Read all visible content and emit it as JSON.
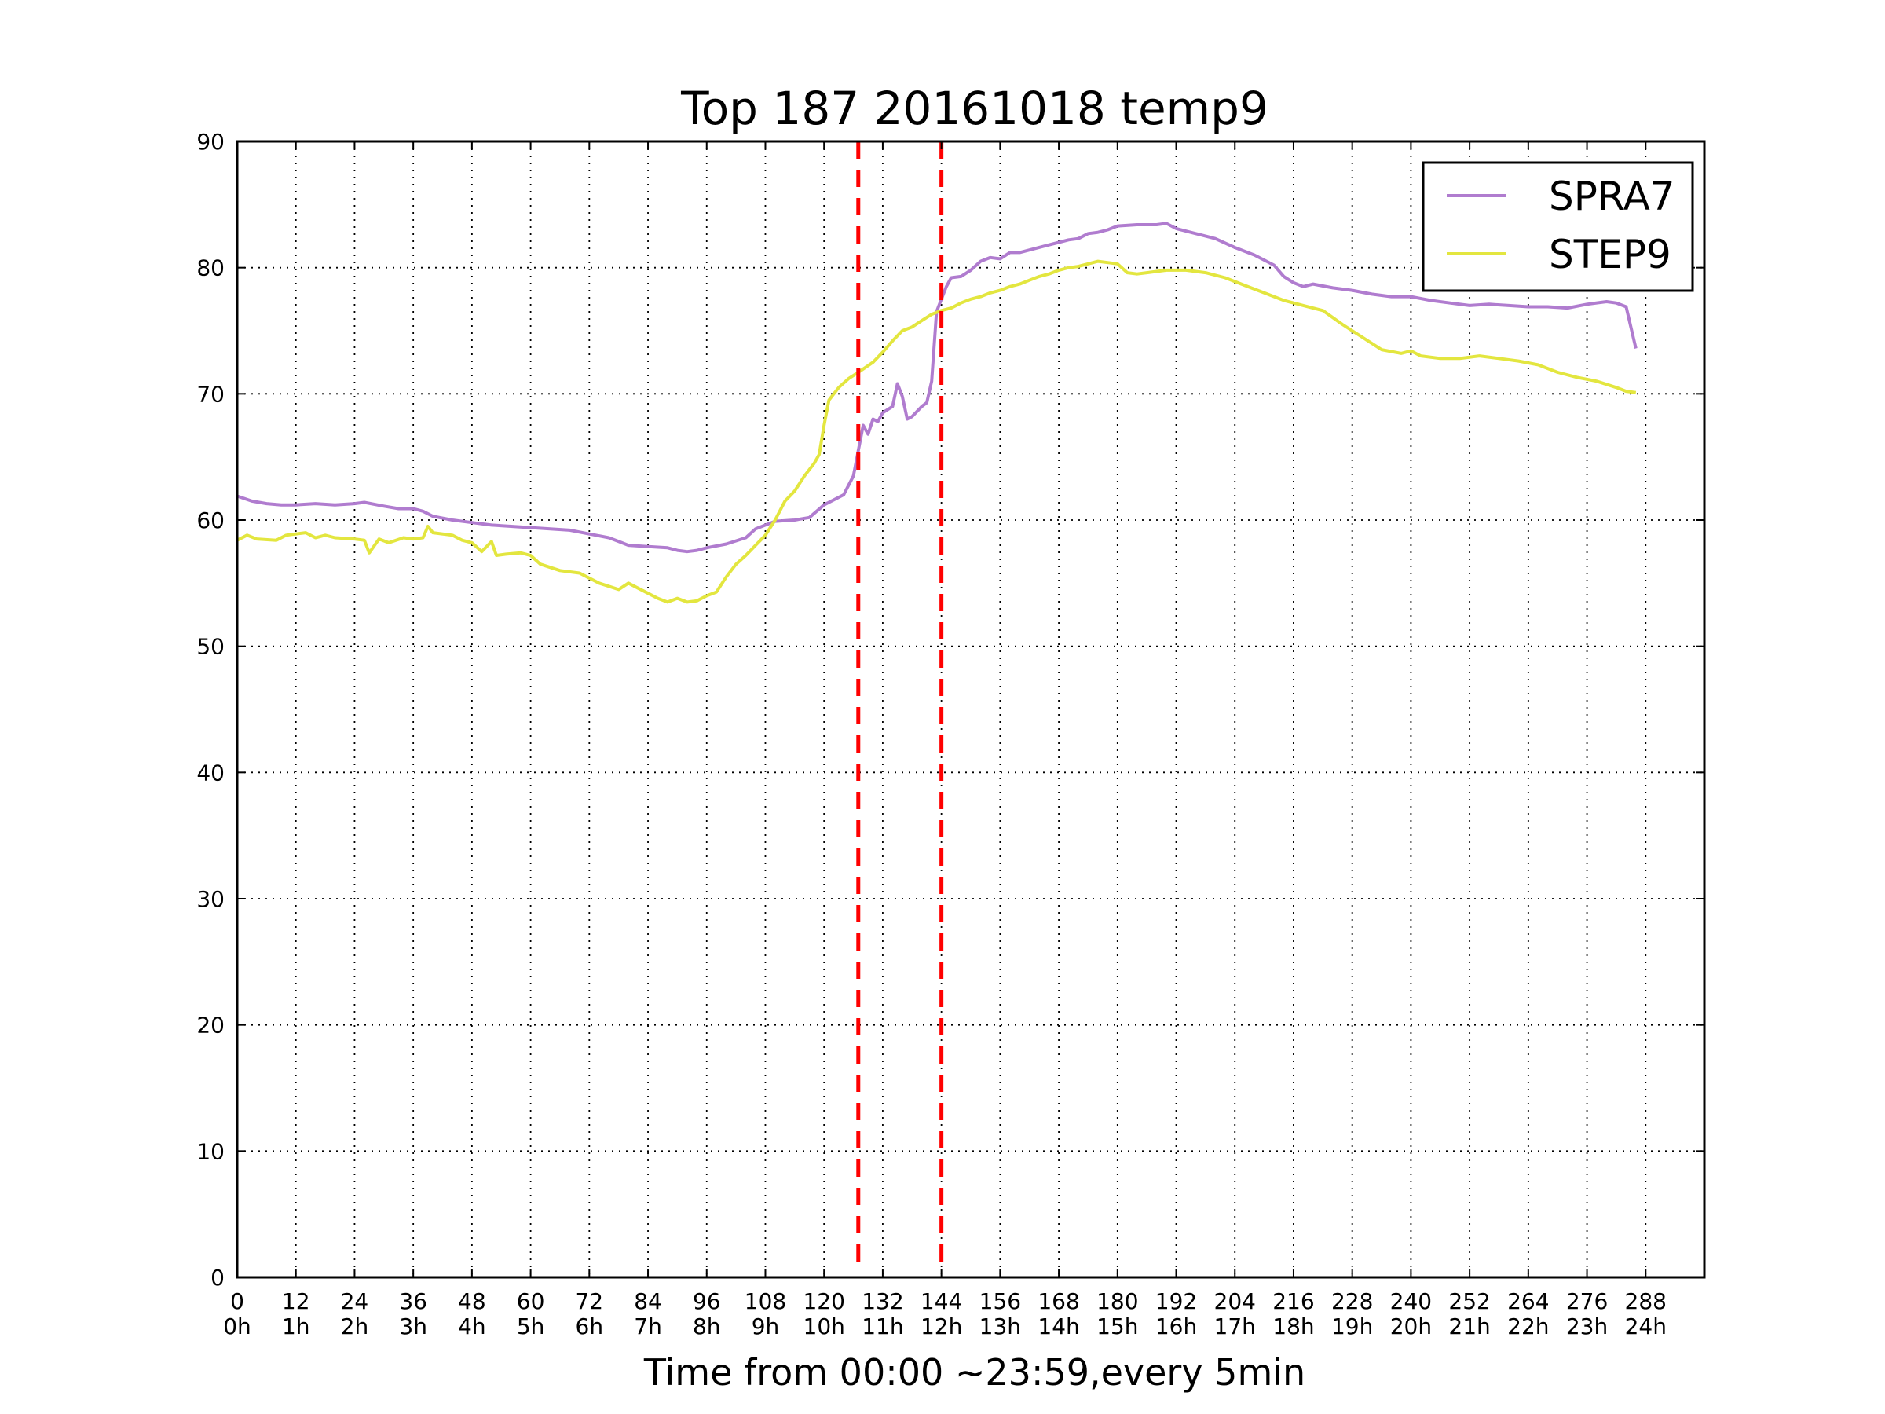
{
  "chart_data": {
    "type": "line",
    "title": "Top 187 20161018 temp9",
    "xlabel": "Time from 00:00 ~23:59,every 5min",
    "ylabel": "",
    "xlim": [
      0,
      300
    ],
    "ylim": [
      0,
      90
    ],
    "grid": true,
    "legend_position": "top-right",
    "x_ticks": [
      0,
      12,
      24,
      36,
      48,
      60,
      72,
      84,
      96,
      108,
      120,
      132,
      144,
      156,
      168,
      180,
      192,
      204,
      216,
      228,
      240,
      252,
      264,
      276,
      288
    ],
    "x_tick_labels": [
      "0",
      "12",
      "24",
      "36",
      "48",
      "60",
      "72",
      "84",
      "96",
      "108",
      "120",
      "132",
      "144",
      "156",
      "168",
      "180",
      "192",
      "204",
      "216",
      "228",
      "240",
      "252",
      "264",
      "276",
      "288"
    ],
    "x_tick_hour_labels": [
      "0h",
      "1h",
      "2h",
      "3h",
      "4h",
      "5h",
      "6h",
      "7h",
      "8h",
      "9h",
      "10h",
      "11h",
      "12h",
      "13h",
      "14h",
      "15h",
      "16h",
      "17h",
      "18h",
      "19h",
      "20h",
      "21h",
      "22h",
      "23h",
      "24h"
    ],
    "y_ticks": [
      0,
      10,
      20,
      30,
      40,
      50,
      60,
      70,
      80,
      90
    ],
    "y_tick_labels": [
      "0",
      "10",
      "20",
      "30",
      "40",
      "50",
      "60",
      "70",
      "80",
      "90"
    ],
    "vertical_markers": [
      {
        "x": 127,
        "color": "#ff0000",
        "style": "dashed"
      },
      {
        "x": 144,
        "color": "#ff0000",
        "style": "dashed"
      }
    ],
    "series": [
      {
        "name": "SPRA7",
        "color": "#b07ccf",
        "points": [
          [
            0,
            61.9
          ],
          [
            3,
            61.5
          ],
          [
            6,
            61.3
          ],
          [
            9,
            61.2
          ],
          [
            12,
            61.2
          ],
          [
            16,
            61.3
          ],
          [
            20,
            61.2
          ],
          [
            24,
            61.3
          ],
          [
            26,
            61.4
          ],
          [
            30,
            61.1
          ],
          [
            33,
            60.9
          ],
          [
            36,
            60.9
          ],
          [
            38,
            60.7
          ],
          [
            40,
            60.3
          ],
          [
            44,
            60.0
          ],
          [
            48,
            59.8
          ],
          [
            52,
            59.6
          ],
          [
            56,
            59.5
          ],
          [
            60,
            59.4
          ],
          [
            64,
            59.3
          ],
          [
            68,
            59.2
          ],
          [
            72,
            58.9
          ],
          [
            76,
            58.6
          ],
          [
            78,
            58.3
          ],
          [
            80,
            58.0
          ],
          [
            84,
            57.9
          ],
          [
            88,
            57.8
          ],
          [
            90,
            57.6
          ],
          [
            92,
            57.5
          ],
          [
            94,
            57.6
          ],
          [
            96,
            57.8
          ],
          [
            100,
            58.1
          ],
          [
            104,
            58.6
          ],
          [
            106,
            59.3
          ],
          [
            108,
            59.6
          ],
          [
            110,
            59.9
          ],
          [
            114,
            60.0
          ],
          [
            117,
            60.2
          ],
          [
            120,
            61.2
          ],
          [
            124,
            62.0
          ],
          [
            126,
            63.5
          ],
          [
            127,
            65.5
          ],
          [
            128,
            67.5
          ],
          [
            129,
            66.8
          ],
          [
            130,
            68.0
          ],
          [
            131,
            67.8
          ],
          [
            132,
            68.5
          ],
          [
            134,
            69.0
          ],
          [
            135,
            70.8
          ],
          [
            136,
            69.8
          ],
          [
            137,
            68.0
          ],
          [
            138,
            68.2
          ],
          [
            140,
            69.0
          ],
          [
            141,
            69.3
          ],
          [
            142,
            71.0
          ],
          [
            143,
            76.5
          ],
          [
            144,
            77.5
          ],
          [
            145,
            78.5
          ],
          [
            146,
            79.2
          ],
          [
            148,
            79.3
          ],
          [
            150,
            79.8
          ],
          [
            152,
            80.5
          ],
          [
            154,
            80.8
          ],
          [
            156,
            80.7
          ],
          [
            158,
            81.2
          ],
          [
            160,
            81.2
          ],
          [
            163,
            81.5
          ],
          [
            166,
            81.8
          ],
          [
            168,
            82.0
          ],
          [
            170,
            82.2
          ],
          [
            172,
            82.3
          ],
          [
            174,
            82.7
          ],
          [
            176,
            82.8
          ],
          [
            178,
            83.0
          ],
          [
            180,
            83.3
          ],
          [
            184,
            83.4
          ],
          [
            188,
            83.4
          ],
          [
            190,
            83.5
          ],
          [
            192,
            83.1
          ],
          [
            196,
            82.7
          ],
          [
            200,
            82.3
          ],
          [
            204,
            81.6
          ],
          [
            208,
            81.0
          ],
          [
            212,
            80.2
          ],
          [
            214,
            79.3
          ],
          [
            216,
            78.8
          ],
          [
            218,
            78.5
          ],
          [
            220,
            78.7
          ],
          [
            224,
            78.4
          ],
          [
            228,
            78.2
          ],
          [
            232,
            77.9
          ],
          [
            236,
            77.7
          ],
          [
            240,
            77.7
          ],
          [
            244,
            77.4
          ],
          [
            248,
            77.2
          ],
          [
            252,
            77.0
          ],
          [
            256,
            77.1
          ],
          [
            260,
            77.0
          ],
          [
            264,
            76.9
          ],
          [
            268,
            76.9
          ],
          [
            272,
            76.8
          ],
          [
            276,
            77.1
          ],
          [
            280,
            77.3
          ],
          [
            282,
            77.2
          ],
          [
            284,
            76.9
          ],
          [
            286,
            73.6
          ]
        ]
      },
      {
        "name": "STEP9",
        "color": "#e3e63f",
        "points": [
          [
            0,
            58.4
          ],
          [
            2,
            58.8
          ],
          [
            4,
            58.5
          ],
          [
            8,
            58.4
          ],
          [
            10,
            58.8
          ],
          [
            14,
            59.0
          ],
          [
            16,
            58.6
          ],
          [
            18,
            58.8
          ],
          [
            20,
            58.6
          ],
          [
            24,
            58.5
          ],
          [
            26,
            58.4
          ],
          [
            27,
            57.4
          ],
          [
            29,
            58.5
          ],
          [
            31,
            58.2
          ],
          [
            34,
            58.6
          ],
          [
            36,
            58.5
          ],
          [
            38,
            58.6
          ],
          [
            39,
            59.5
          ],
          [
            40,
            59.0
          ],
          [
            44,
            58.8
          ],
          [
            46,
            58.4
          ],
          [
            48,
            58.2
          ],
          [
            50,
            57.5
          ],
          [
            52,
            58.3
          ],
          [
            53,
            57.2
          ],
          [
            55,
            57.3
          ],
          [
            58,
            57.4
          ],
          [
            60,
            57.2
          ],
          [
            62,
            56.5
          ],
          [
            66,
            56.0
          ],
          [
            70,
            55.8
          ],
          [
            74,
            55.0
          ],
          [
            78,
            54.5
          ],
          [
            80,
            55.0
          ],
          [
            82,
            54.6
          ],
          [
            84,
            54.2
          ],
          [
            86,
            53.8
          ],
          [
            88,
            53.5
          ],
          [
            90,
            53.8
          ],
          [
            92,
            53.5
          ],
          [
            94,
            53.6
          ],
          [
            96,
            54.0
          ],
          [
            98,
            54.3
          ],
          [
            100,
            55.5
          ],
          [
            102,
            56.5
          ],
          [
            104,
            57.2
          ],
          [
            106,
            58.0
          ],
          [
            108,
            58.8
          ],
          [
            110,
            60.0
          ],
          [
            112,
            61.5
          ],
          [
            114,
            62.3
          ],
          [
            116,
            63.5
          ],
          [
            118,
            64.5
          ],
          [
            119,
            65.2
          ],
          [
            120,
            67.5
          ],
          [
            121,
            69.5
          ],
          [
            123,
            70.5
          ],
          [
            125,
            71.2
          ],
          [
            127,
            71.7
          ],
          [
            130,
            72.5
          ],
          [
            132,
            73.3
          ],
          [
            134,
            74.2
          ],
          [
            136,
            75.0
          ],
          [
            138,
            75.3
          ],
          [
            140,
            75.8
          ],
          [
            142,
            76.3
          ],
          [
            144,
            76.6
          ],
          [
            146,
            76.8
          ],
          [
            148,
            77.2
          ],
          [
            150,
            77.5
          ],
          [
            152,
            77.7
          ],
          [
            154,
            78.0
          ],
          [
            156,
            78.2
          ],
          [
            158,
            78.5
          ],
          [
            160,
            78.7
          ],
          [
            162,
            79.0
          ],
          [
            164,
            79.3
          ],
          [
            166,
            79.5
          ],
          [
            168,
            79.8
          ],
          [
            170,
            80.0
          ],
          [
            172,
            80.1
          ],
          [
            174,
            80.3
          ],
          [
            176,
            80.5
          ],
          [
            178,
            80.4
          ],
          [
            180,
            80.3
          ],
          [
            182,
            79.6
          ],
          [
            184,
            79.5
          ],
          [
            186,
            79.6
          ],
          [
            190,
            79.8
          ],
          [
            194,
            79.8
          ],
          [
            198,
            79.6
          ],
          [
            202,
            79.2
          ],
          [
            206,
            78.6
          ],
          [
            210,
            78.0
          ],
          [
            214,
            77.4
          ],
          [
            218,
            77.0
          ],
          [
            222,
            76.6
          ],
          [
            226,
            75.5
          ],
          [
            230,
            74.5
          ],
          [
            234,
            73.5
          ],
          [
            238,
            73.2
          ],
          [
            240,
            73.4
          ],
          [
            242,
            73.0
          ],
          [
            246,
            72.8
          ],
          [
            250,
            72.8
          ],
          [
            254,
            73.0
          ],
          [
            258,
            72.8
          ],
          [
            262,
            72.6
          ],
          [
            266,
            72.3
          ],
          [
            270,
            71.7
          ],
          [
            274,
            71.3
          ],
          [
            278,
            71.0
          ],
          [
            282,
            70.5
          ],
          [
            284,
            70.2
          ],
          [
            286,
            70.1
          ]
        ]
      }
    ]
  }
}
